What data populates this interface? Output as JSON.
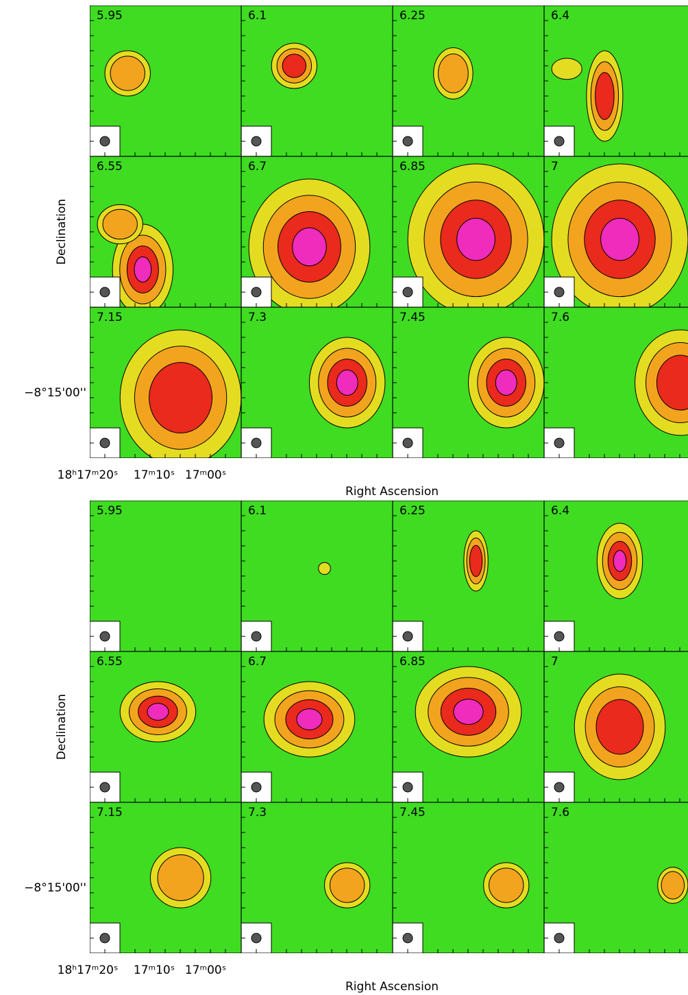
{
  "figures": [
    {
      "panels": [
        {
          "label": "5.95"
        },
        {
          "label": "6.1"
        },
        {
          "label": "6.25"
        },
        {
          "label": "6.4"
        },
        {
          "label": "6.55"
        },
        {
          "label": "6.7"
        },
        {
          "label": "6.85"
        },
        {
          "label": "7"
        },
        {
          "label": "7.15"
        },
        {
          "label": "7.3"
        },
        {
          "label": "7.45"
        },
        {
          "label": "7.6"
        }
      ],
      "y_axis_label": "Declination",
      "y_tick_label": "−8°15'00''",
      "x_tick_labels": [
        "18ʰ17ᵐ20ˢ",
        "17ᵐ10ˢ",
        "17ᵐ00ˢ"
      ],
      "x_axis_label": "Right Ascension"
    },
    {
      "panels": [
        {
          "label": "5.95"
        },
        {
          "label": "6.1"
        },
        {
          "label": "6.25"
        },
        {
          "label": "6.4"
        },
        {
          "label": "6.55"
        },
        {
          "label": "6.7"
        },
        {
          "label": "6.85"
        },
        {
          "label": "7"
        },
        {
          "label": "7.15"
        },
        {
          "label": "7.3"
        },
        {
          "label": "7.45"
        },
        {
          "label": "7.6"
        }
      ],
      "y_axis_label": "Declination",
      "y_tick_label": "−8°15'00''",
      "x_tick_labels": [
        "18ʰ17ᵐ20ˢ",
        "17ᵐ10ˢ",
        "17ᵐ00ˢ"
      ],
      "x_axis_label": "Right Ascension"
    }
  ]
}
